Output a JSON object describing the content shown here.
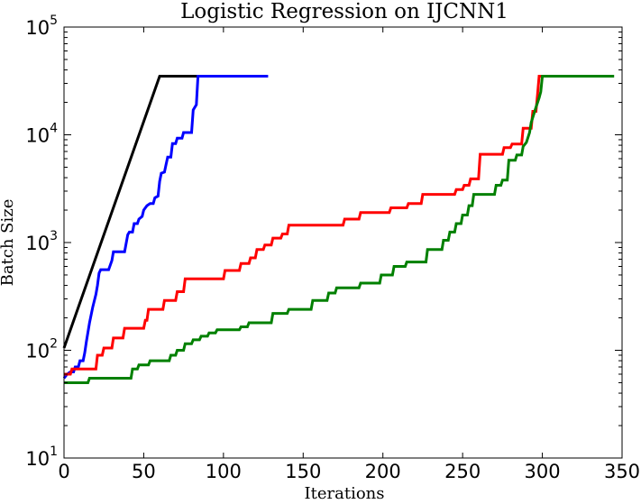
{
  "chart_data": {
    "type": "line",
    "title": "Logistic Regression on IJCNN1",
    "xlabel": "Iterations",
    "ylabel": "Batch Size",
    "xlim": [
      0,
      350
    ],
    "ylim": [
      10,
      100000
    ],
    "yscale": "log",
    "grid": false,
    "xticks": [
      0,
      50,
      100,
      150,
      200,
      250,
      300,
      350
    ],
    "xtick_labels": [
      "0",
      "50",
      "100",
      "150",
      "200",
      "250",
      "300",
      "350"
    ],
    "yticks": [
      10,
      100,
      1000,
      10000,
      100000
    ],
    "ytick_labels": [
      {
        "base": "10",
        "exp": "1"
      },
      {
        "base": "10",
        "exp": "2"
      },
      {
        "base": "10",
        "exp": "3"
      },
      {
        "base": "10",
        "exp": "4"
      },
      {
        "base": "10",
        "exp": "5"
      }
    ],
    "series": [
      {
        "color": "#000000",
        "points": [
          [
            0,
            105
          ],
          [
            60,
            35000
          ],
          [
            100,
            35000
          ]
        ]
      },
      {
        "color": "#0000ff",
        "points": [
          [
            0,
            55
          ],
          [
            2,
            60
          ],
          [
            4,
            63
          ],
          [
            6,
            63
          ],
          [
            7,
            70
          ],
          [
            9,
            70
          ],
          [
            10,
            80
          ],
          [
            12,
            80
          ],
          [
            13,
            95
          ],
          [
            14,
            120
          ],
          [
            16,
            180
          ],
          [
            18,
            250
          ],
          [
            20,
            330
          ],
          [
            21,
            400
          ],
          [
            22,
            520
          ],
          [
            23,
            560
          ],
          [
            28,
            560
          ],
          [
            30,
            680
          ],
          [
            31,
            820
          ],
          [
            38,
            820
          ],
          [
            40,
            1180
          ],
          [
            41,
            1250
          ],
          [
            43,
            1250
          ],
          [
            44,
            1500
          ],
          [
            46,
            1500
          ],
          [
            47,
            1650
          ],
          [
            49,
            1750
          ],
          [
            50,
            2000
          ],
          [
            52,
            2200
          ],
          [
            54,
            2300
          ],
          [
            56,
            2300
          ],
          [
            57,
            2600
          ],
          [
            59,
            2700
          ],
          [
            60,
            3700
          ],
          [
            61,
            4400
          ],
          [
            63,
            4500
          ],
          [
            64,
            5300
          ],
          [
            65,
            6200
          ],
          [
            67,
            6200
          ],
          [
            68,
            8300
          ],
          [
            70,
            8300
          ],
          [
            71,
            9300
          ],
          [
            74,
            9300
          ],
          [
            75,
            10500
          ],
          [
            80,
            10500
          ],
          [
            81,
            17000
          ],
          [
            83,
            19000
          ],
          [
            84,
            35000
          ],
          [
            128,
            35000
          ]
        ]
      },
      {
        "color": "#ff0000",
        "points": [
          [
            0,
            60
          ],
          [
            4,
            60
          ],
          [
            5,
            67
          ],
          [
            20,
            67
          ],
          [
            21,
            90
          ],
          [
            24,
            90
          ],
          [
            25,
            105
          ],
          [
            30,
            105
          ],
          [
            31,
            130
          ],
          [
            37,
            130
          ],
          [
            38,
            160
          ],
          [
            50,
            160
          ],
          [
            51,
            190
          ],
          [
            52,
            190
          ],
          [
            53,
            240
          ],
          [
            62,
            240
          ],
          [
            63,
            290
          ],
          [
            70,
            290
          ],
          [
            71,
            350
          ],
          [
            75,
            350
          ],
          [
            76,
            460
          ],
          [
            100,
            460
          ],
          [
            101,
            550
          ],
          [
            110,
            550
          ],
          [
            111,
            640
          ],
          [
            116,
            640
          ],
          [
            117,
            720
          ],
          [
            120,
            720
          ],
          [
            121,
            860
          ],
          [
            125,
            860
          ],
          [
            126,
            950
          ],
          [
            130,
            950
          ],
          [
            131,
            1100
          ],
          [
            136,
            1100
          ],
          [
            137,
            1200
          ],
          [
            140,
            1200
          ],
          [
            141,
            1450
          ],
          [
            175,
            1450
          ],
          [
            176,
            1650
          ],
          [
            185,
            1650
          ],
          [
            186,
            1900
          ],
          [
            204,
            1900
          ],
          [
            205,
            2100
          ],
          [
            215,
            2100
          ],
          [
            216,
            2300
          ],
          [
            224,
            2300
          ],
          [
            225,
            2800
          ],
          [
            245,
            2800
          ],
          [
            246,
            3100
          ],
          [
            250,
            3100
          ],
          [
            251,
            3400
          ],
          [
            254,
            3400
          ],
          [
            255,
            3900
          ],
          [
            260,
            3900
          ],
          [
            261,
            6600
          ],
          [
            275,
            6600
          ],
          [
            276,
            7600
          ],
          [
            280,
            7600
          ],
          [
            281,
            8200
          ],
          [
            287,
            8200
          ],
          [
            288,
            11500
          ],
          [
            293,
            11500
          ],
          [
            294,
            16500
          ],
          [
            296,
            16500
          ],
          [
            297,
            24000
          ],
          [
            298,
            35000
          ],
          [
            335,
            35000
          ]
        ]
      },
      {
        "color": "#008000",
        "points": [
          [
            0,
            50
          ],
          [
            15,
            50
          ],
          [
            16,
            55
          ],
          [
            42,
            55
          ],
          [
            43,
            67
          ],
          [
            46,
            67
          ],
          [
            47,
            73
          ],
          [
            53,
            73
          ],
          [
            54,
            80
          ],
          [
            66,
            80
          ],
          [
            67,
            90
          ],
          [
            70,
            90
          ],
          [
            71,
            100
          ],
          [
            75,
            100
          ],
          [
            76,
            115
          ],
          [
            80,
            115
          ],
          [
            81,
            125
          ],
          [
            85,
            125
          ],
          [
            86,
            135
          ],
          [
            90,
            135
          ],
          [
            91,
            145
          ],
          [
            95,
            145
          ],
          [
            96,
            155
          ],
          [
            110,
            155
          ],
          [
            111,
            165
          ],
          [
            115,
            165
          ],
          [
            116,
            180
          ],
          [
            130,
            180
          ],
          [
            131,
            220
          ],
          [
            140,
            220
          ],
          [
            141,
            240
          ],
          [
            155,
            240
          ],
          [
            156,
            290
          ],
          [
            165,
            290
          ],
          [
            166,
            340
          ],
          [
            170,
            340
          ],
          [
            171,
            380
          ],
          [
            185,
            380
          ],
          [
            186,
            420
          ],
          [
            198,
            420
          ],
          [
            199,
            500
          ],
          [
            206,
            500
          ],
          [
            207,
            600
          ],
          [
            214,
            600
          ],
          [
            215,
            660
          ],
          [
            227,
            660
          ],
          [
            228,
            860
          ],
          [
            237,
            860
          ],
          [
            238,
            1050
          ],
          [
            241,
            1050
          ],
          [
            242,
            1250
          ],
          [
            245,
            1250
          ],
          [
            246,
            1500
          ],
          [
            249,
            1500
          ],
          [
            250,
            1800
          ],
          [
            253,
            1800
          ],
          [
            254,
            2200
          ],
          [
            256,
            2200
          ],
          [
            257,
            2800
          ],
          [
            270,
            2800
          ],
          [
            271,
            3400
          ],
          [
            274,
            3400
          ],
          [
            275,
            3800
          ],
          [
            278,
            3800
          ],
          [
            279,
            5800
          ],
          [
            283,
            5800
          ],
          [
            284,
            6500
          ],
          [
            287,
            6500
          ],
          [
            288,
            7800
          ],
          [
            290,
            8500
          ],
          [
            292,
            10500
          ],
          [
            293,
            13000
          ],
          [
            296,
            18000
          ],
          [
            298,
            22000
          ],
          [
            299,
            25000
          ],
          [
            300,
            35000
          ],
          [
            345,
            35000
          ]
        ]
      }
    ]
  }
}
